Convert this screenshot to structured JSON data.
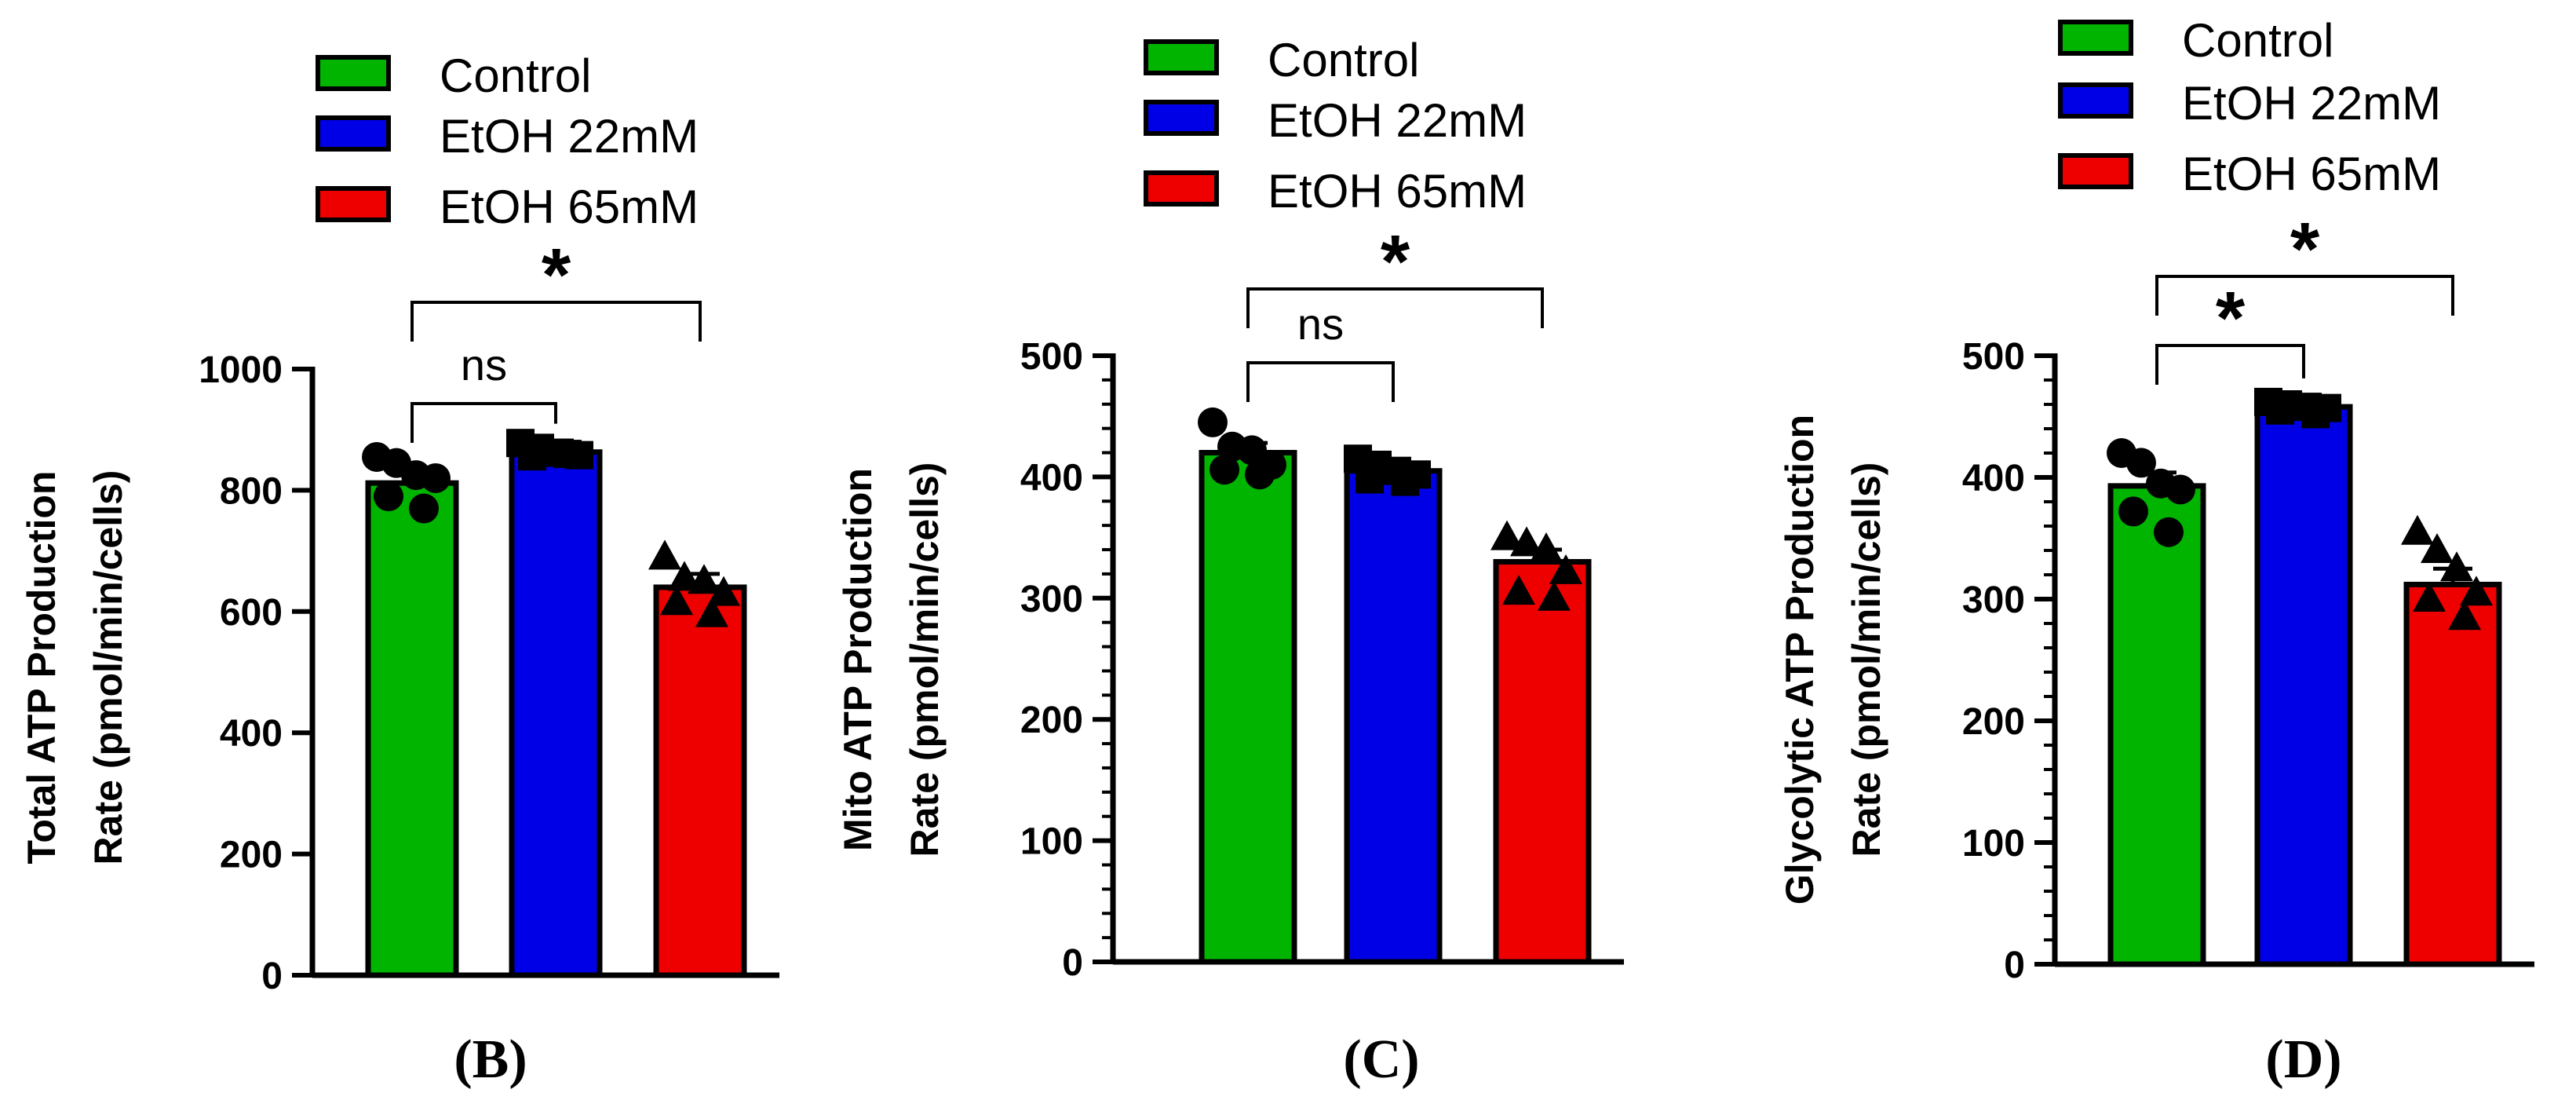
{
  "colors": {
    "control": "#00b400",
    "etoh22": "#0000e6",
    "etoh65": "#ee0000",
    "ink": "#000000"
  },
  "chart_data": [
    {
      "type": "bar",
      "panel": "(B)",
      "ylabel_line1": "Total ATP Production",
      "ylabel_line2": "Rate (pmol/min/cells)",
      "ylim": [
        0,
        1000
      ],
      "yticks": [
        0,
        200,
        400,
        600,
        800,
        1000
      ],
      "legend": [
        "Control",
        "EtOH 22mM",
        "EtOH 65mM"
      ],
      "categories": [
        "Control",
        "EtOH 22mM",
        "EtOH 65mM"
      ],
      "values": [
        812,
        863,
        640
      ],
      "errors": [
        18,
        8,
        22
      ],
      "markers": [
        "circle",
        "square",
        "triangle"
      ],
      "points": [
        [
          855,
          845,
          825,
          820,
          790,
          770
        ],
        [
          878,
          870,
          862,
          858,
          856,
          860
        ],
        [
          690,
          655,
          650,
          630,
          615,
          595
        ]
      ],
      "comparisons": [
        {
          "from": 0,
          "to": 1,
          "label": "ns"
        },
        {
          "from": 0,
          "to": 2,
          "label": "*"
        }
      ]
    },
    {
      "type": "bar",
      "panel": "(C)",
      "ylabel_line1": "Mito ATP Production",
      "ylabel_line2": "Rate (pmol/min/cells)",
      "ylim": [
        0,
        500
      ],
      "yticks": [
        0,
        100,
        200,
        300,
        400,
        500
      ],
      "legend": [
        "Control",
        "EtOH 22mM",
        "EtOH 65mM"
      ],
      "categories": [
        "Control",
        "EtOH 22mM",
        "EtOH 65mM"
      ],
      "values": [
        420,
        405,
        330
      ],
      "errors": [
        8,
        6,
        10
      ],
      "markers": [
        "circle",
        "square",
        "triangle"
      ],
      "points": [
        [
          445,
          425,
          422,
          410,
          406,
          402
        ],
        [
          415,
          410,
          405,
          402,
          398,
          396
        ],
        [
          350,
          345,
          340,
          322,
          305,
          300
        ]
      ],
      "comparisons": [
        {
          "from": 0,
          "to": 1,
          "label": "ns"
        },
        {
          "from": 0,
          "to": 2,
          "label": "*"
        }
      ]
    },
    {
      "type": "bar",
      "panel": "(D)",
      "ylabel_line1": "Glycolytic ATP Production",
      "ylabel_line2": "Rate (pmol/min/cells)",
      "ylim": [
        0,
        500
      ],
      "yticks": [
        0,
        100,
        200,
        300,
        400,
        500
      ],
      "legend": [
        "Control",
        "EtOH 22mM",
        "EtOH 65mM"
      ],
      "categories": [
        "Control",
        "EtOH 22mM",
        "EtOH 65mM"
      ],
      "values": [
        393,
        458,
        312
      ],
      "errors": [
        11,
        4,
        13
      ],
      "markers": [
        "circle",
        "square",
        "triangle"
      ],
      "points": [
        [
          420,
          412,
          395,
          390,
          372,
          355
        ],
        [
          462,
          460,
          458,
          457,
          455,
          452
        ],
        [
          355,
          340,
          325,
          305,
          300,
          285
        ]
      ],
      "comparisons": [
        {
          "from": 0,
          "to": 1,
          "label": "*"
        },
        {
          "from": 0,
          "to": 2,
          "label": "*"
        }
      ]
    }
  ]
}
